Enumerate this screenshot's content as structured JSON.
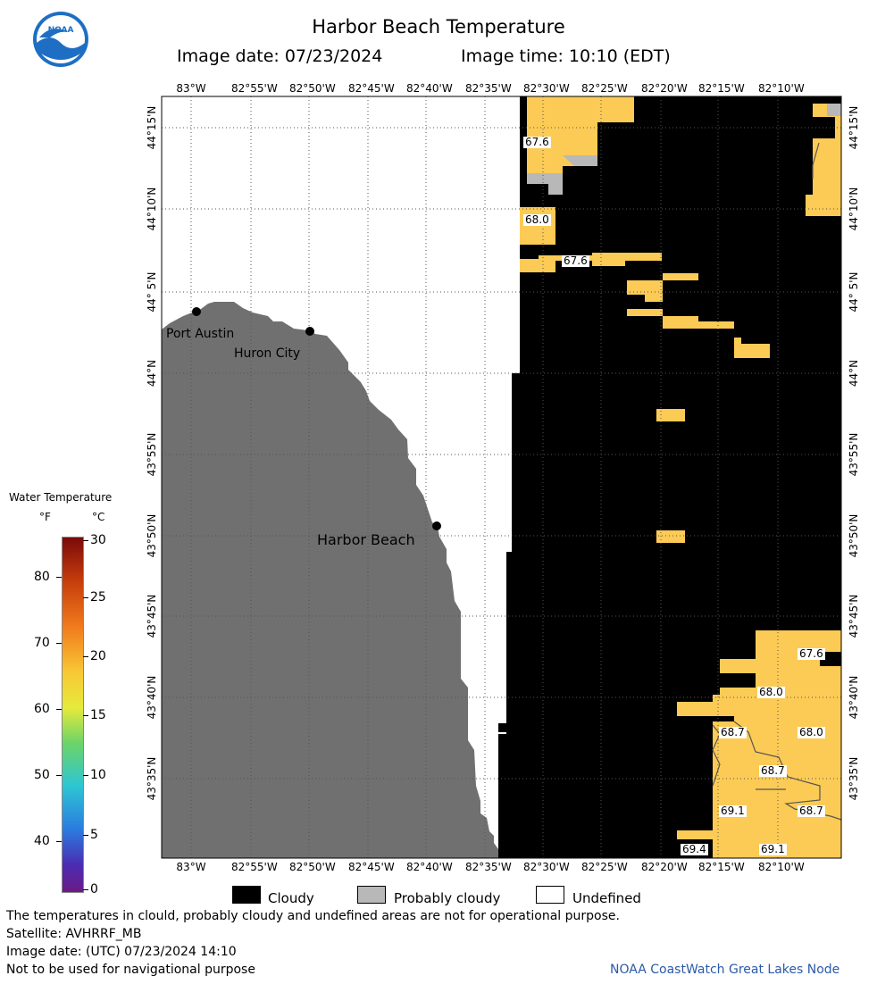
{
  "header": {
    "title": "Harbor Beach Temperature",
    "image_date": "Image date: 07/23/2024",
    "image_time": "Image time: 10:10 (EDT)"
  },
  "logo": {
    "text": "NOAA"
  },
  "axes": {
    "lon_labels": [
      "83°W",
      "82°55'W",
      "82°50'W",
      "82°45'W",
      "82°40'W",
      "82°35'W",
      "82°30'W",
      "82°25'W",
      "82°20'W",
      "82°15'W",
      "82°10'W"
    ],
    "lat_labels": [
      "44°15'N",
      "44°10'N",
      "44° 5'N",
      "44°N",
      "43°55'N",
      "43°50'N",
      "43°45'N",
      "43°40'N",
      "43°35'N"
    ]
  },
  "places": [
    {
      "name": "Port Austin"
    },
    {
      "name": "Huron City"
    },
    {
      "name": "Harbor Beach"
    }
  ],
  "temp_labels": [
    "67.6",
    "68.0",
    "67.6",
    "67.6",
    "68.0",
    "68.0",
    "68.7",
    "68.7",
    "68.7",
    "69.1",
    "69.4",
    "69.1"
  ],
  "colorbar": {
    "title": "Water Temperature",
    "unit_f": "°F",
    "unit_c": "°C",
    "f_ticks": [
      "80",
      "70",
      "60",
      "50",
      "40"
    ],
    "c_ticks": [
      "30",
      "25",
      "20",
      "15",
      "10",
      "5",
      "0"
    ]
  },
  "key": {
    "cloudy": "Cloudy",
    "probably_cloudy": "Probably cloudy",
    "undefined": "Undefined"
  },
  "footer": {
    "line1": "The temperatures in clould, probably cloudy and undefined areas are not for operational purpose.",
    "line2": "Satellite: AVHRRF_MB",
    "line3": "Image date: (UTC) 07/23/2024  14:10",
    "line4": "Not to be used for navigational purpose",
    "credit": "NOAA CoastWatch Great Lakes Node"
  },
  "colors": {
    "land": "#707070",
    "cloud": "#000000",
    "prob_cloud": "#b8b8b8",
    "water_warm": "#fccb55"
  }
}
